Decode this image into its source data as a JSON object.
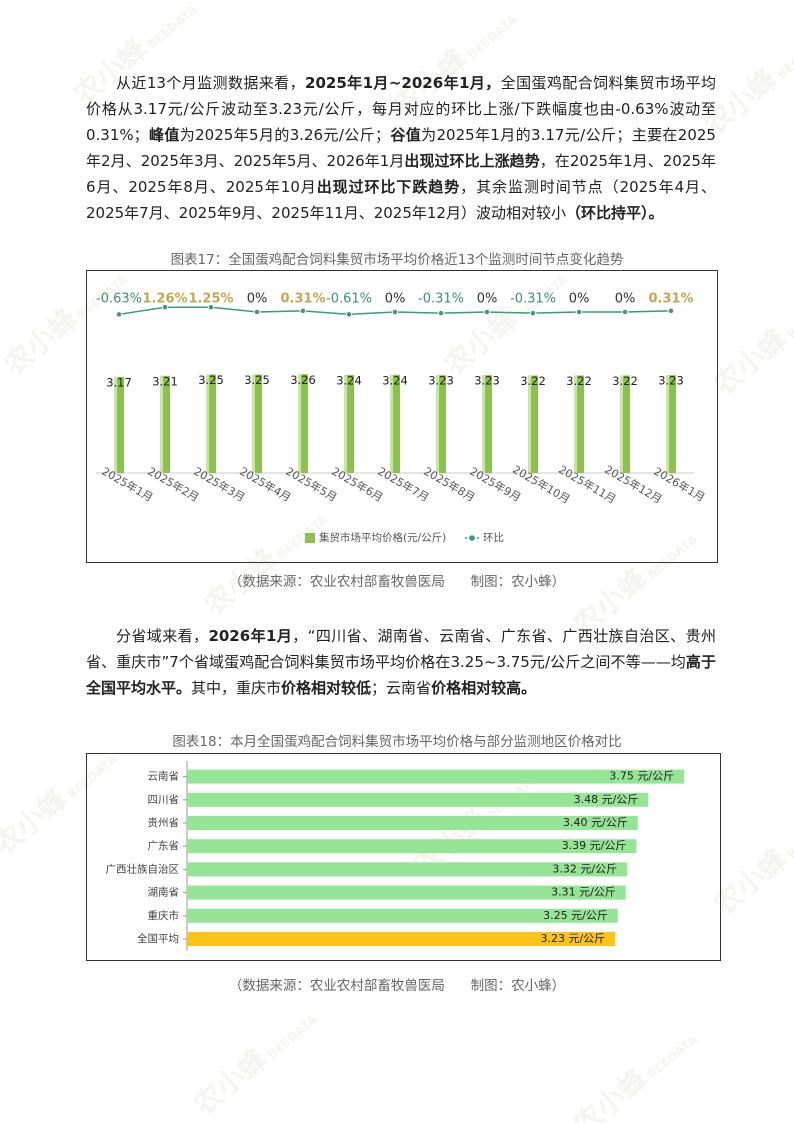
{
  "paragraphs": [
    {
      "segments": [
        {
          "text": "从近13个月监测数据来看，",
          "bold": false
        },
        {
          "text": "2025年1月~2026年1月，",
          "bold": true
        },
        {
          "text": "全国蛋鸡配合饲料集贸市场平均价格从3.17元/公斤波动至3.23元/公斤，每月对应的环比上涨/下跌幅度也由-0.63%波动至0.31%；",
          "bold": false
        },
        {
          "text": "峰值",
          "bold": true
        },
        {
          "text": "为2025年5月的3.26元/公斤；",
          "bold": false
        },
        {
          "text": "谷值",
          "bold": true
        },
        {
          "text": "为2025年1月的3.17元/公斤；主要在2025年2月、2025年3月、2025年5月、2026年1月",
          "bold": false
        },
        {
          "text": "出现过环比上涨趋势",
          "bold": true
        },
        {
          "text": "，在2025年1月、2025年6月、2025年8月、2025年10月",
          "bold": false
        },
        {
          "text": "出现过环比下跌趋势",
          "bold": true
        },
        {
          "text": "，其余监测时间节点（2025年4月、2025年7月、2025年9月、2025年11月、2025年12月）波动相对较小",
          "bold": false
        },
        {
          "text": "（环比持平）。",
          "bold": true
        }
      ]
    },
    {
      "segments": [
        {
          "text": "分省域来看，",
          "bold": false
        },
        {
          "text": "2026年1月",
          "bold": true
        },
        {
          "text": "，“四川省、湖南省、云南省、广东省、广西壮族自治区、贵州省、重庆市”7个省域蛋鸡配合饲料集贸市场平均价格在3.25~3.75元/公斤之间不等——均",
          "bold": false
        },
        {
          "text": "高于全国平均水平。",
          "bold": true
        },
        {
          "text": "其中，重庆市",
          "bold": false
        },
        {
          "text": "价格相对较低",
          "bold": true
        },
        {
          "text": "；云南省",
          "bold": false
        },
        {
          "text": "价格相对较高。",
          "bold": true
        }
      ]
    }
  ],
  "watermark": "农小蜂",
  "watermark_sub": "BEEDATA",
  "chart_data": [
    {
      "type": "bar",
      "title": "图表17：全国蛋鸡配合饲料集贸市场平均价格近13个监测时间节点变化趋势",
      "source": "（数据来源：农业农村部畜牧兽医局      制图：农小蜂）",
      "categories": [
        "2025年1月",
        "2025年2月",
        "2025年3月",
        "2025年4月",
        "2025年5月",
        "2025年6月",
        "2025年7月",
        "2025年8月",
        "2025年9月",
        "2025年10月",
        "2025年11月",
        "2025年12月",
        "2026年1月"
      ],
      "series": [
        {
          "name": "集贸市场平均价格(元/公斤)",
          "type": "bar",
          "color": "#8cc152",
          "values": [
            3.17,
            3.21,
            3.25,
            3.25,
            3.26,
            3.24,
            3.24,
            3.23,
            3.23,
            3.22,
            3.22,
            3.22,
            3.23
          ]
        },
        {
          "name": "环比",
          "type": "line",
          "axis": "y2",
          "color": "#3f9a7c",
          "values": [
            -0.63,
            1.26,
            1.25,
            0,
            0.31,
            -0.61,
            0,
            -0.31,
            0,
            -0.31,
            0,
            0,
            0.31
          ],
          "value_labels": [
            "-0.63%",
            "1.26%",
            "1.25%",
            "0%",
            "0.31%",
            "-0.61%",
            "0%",
            "-0.31%",
            "0%",
            "-0.31%",
            "0%",
            "0%",
            "0.31%"
          ]
        }
      ],
      "label_colors": {
        "negative": "#3f8f78",
        "positive": "#c8a64e",
        "zero": "#333333"
      },
      "ylim": [
        0,
        3.5
      ],
      "y2lim": [
        -5,
        5
      ],
      "legend": "bottom"
    },
    {
      "type": "hbar",
      "title": "图表18：本月全国蛋鸡配合饲料集贸市场平均价格与部分监测地区价格对比",
      "source": "（数据来源：农业农村部畜牧兽医局      制图：农小蜂）",
      "categories": [
        "云南省",
        "四川省",
        "贵州省",
        "广东省",
        "广西壮族自治区",
        "湖南省",
        "重庆市",
        "全国平均"
      ],
      "values": [
        3.75,
        3.48,
        3.4,
        3.39,
        3.32,
        3.31,
        3.25,
        3.23
      ],
      "value_labels": [
        "3.75 元/公斤",
        "3.48 元/公斤",
        "3.40 元/公斤",
        "3.39 元/公斤",
        "3.32 元/公斤",
        "3.31 元/公斤",
        "3.25 元/公斤",
        "3.23 元/公斤"
      ],
      "colors": [
        "#96e596",
        "#96e596",
        "#96e596",
        "#96e596",
        "#96e596",
        "#96e596",
        "#96e596",
        "#fcc419"
      ],
      "xlim": [
        0,
        3.9
      ]
    }
  ]
}
